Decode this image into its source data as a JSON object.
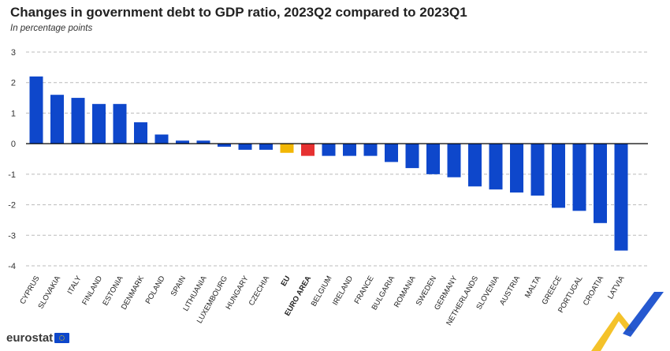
{
  "header": {
    "title": "Changes in government debt to GDP ratio, 2023Q2 compared to 2023Q1",
    "subtitle": "In percentage points"
  },
  "footer": {
    "logo_text": "eurostat"
  },
  "colors": {
    "default_bar": "#0e47cb",
    "eu_bar": "#f2b705",
    "euro_area_bar": "#e63131",
    "grid": "#bbbbbb",
    "axis": "#000000"
  },
  "chart_data": {
    "type": "bar",
    "title": "Changes in government debt to GDP ratio, 2023Q2 compared to 2023Q1",
    "subtitle": "In percentage points",
    "xlabel": "",
    "ylabel": "",
    "ylim": [
      -4,
      3
    ],
    "yticks": [
      3,
      2,
      1,
      0,
      -1,
      -2,
      -3,
      -4
    ],
    "grid": true,
    "categories": [
      "CYPRUS",
      "SLOVAKIA",
      "ITALY",
      "FINLAND",
      "ESTONIA",
      "DENMARK",
      "POLAND",
      "SPAIN",
      "LITHUANIA",
      "LUXEMBOURG",
      "HUNGARY",
      "CZECHIA",
      "EU",
      "EURO AREA",
      "BELGIUM",
      "IRELAND",
      "FRANCE",
      "BULGARIA",
      "ROMANIA",
      "SWEDEN",
      "GERMANY",
      "NETHERLANDS",
      "SLOVENIA",
      "AUSTRIA",
      "MALTA",
      "GREECE",
      "PORTUGAL",
      "CROATIA",
      "LATVIA"
    ],
    "values": [
      2.2,
      1.6,
      1.5,
      1.3,
      1.3,
      0.7,
      0.3,
      0.1,
      0.1,
      -0.1,
      -0.2,
      -0.2,
      -0.3,
      -0.4,
      -0.4,
      -0.4,
      -0.4,
      -0.6,
      -0.8,
      -1.0,
      -1.1,
      -1.4,
      -1.5,
      -1.6,
      -1.7,
      -2.1,
      -2.2,
      -2.6,
      -3.5
    ],
    "highlight": {
      "EU": "#f2b705",
      "EURO AREA": "#e63131"
    },
    "bold_categories": [
      "EU",
      "EURO AREA"
    ]
  }
}
